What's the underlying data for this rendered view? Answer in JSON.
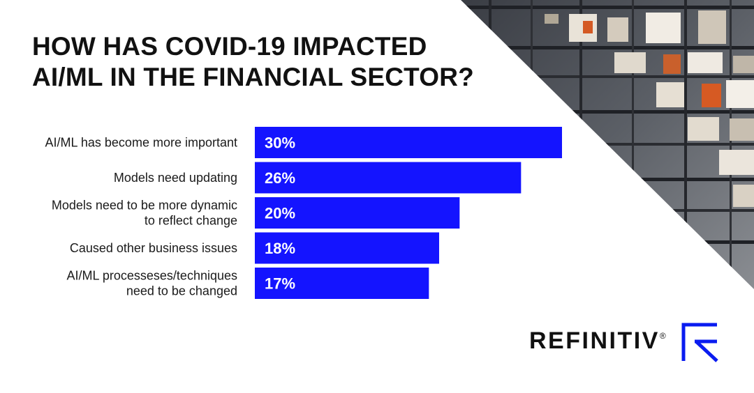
{
  "title": {
    "line1": "HOW HAS COVID-19 IMPACTED",
    "line2": "AI/ML IN THE FINANCIAL SECTOR?"
  },
  "chart_data": {
    "type": "bar",
    "orientation": "horizontal",
    "title": "HOW HAS COVID-19 IMPACTED AI/ML IN THE FINANCIAL SECTOR?",
    "categories": [
      [
        "AI/ML has become more important"
      ],
      [
        "Models need updating"
      ],
      [
        "Models need to be more dynamic",
        "to reflect change"
      ],
      [
        "Caused other business issues"
      ],
      [
        "AI/ML processeses/techniques",
        "need to be changed"
      ]
    ],
    "values": [
      30,
      26,
      20,
      18,
      17
    ],
    "value_labels": [
      "30%",
      "26%",
      "20%",
      "18%",
      "17%"
    ],
    "unit": "%",
    "xlim": [
      0,
      30
    ],
    "bar_color": "#1414ff"
  },
  "brand": {
    "name": "REFINITIV",
    "mark": "®",
    "logo_color": "#0a1cf0"
  },
  "colors": {
    "text": "#111111",
    "background": "#ffffff",
    "photo_dark": "#2a2d33"
  }
}
